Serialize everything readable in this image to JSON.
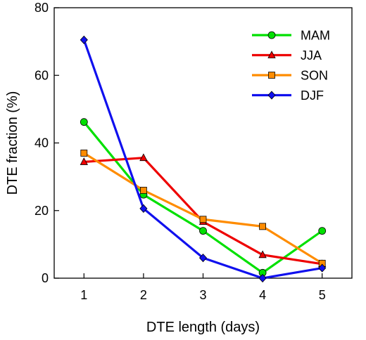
{
  "chart_data": {
    "type": "line",
    "title": "",
    "xlabel": "DTE length (days)",
    "ylabel": "DTE fraction (%)",
    "x": [
      1,
      2,
      3,
      4,
      5
    ],
    "x_ticks": [
      "1",
      "2",
      "3",
      "4",
      "5"
    ],
    "y_ticks": [
      "0",
      "20",
      "40",
      "60",
      "80"
    ],
    "xlim": [
      0.5,
      5.5
    ],
    "ylim": [
      0,
      80
    ],
    "grid": false,
    "legend_position": "top-right",
    "series": [
      {
        "name": "MAM",
        "color": "#00e000",
        "marker": "circle",
        "values": [
          46.2,
          24.7,
          14.0,
          1.6,
          14.0
        ]
      },
      {
        "name": "JJA",
        "color": "#ee0000",
        "marker": "triangle",
        "values": [
          34.4,
          35.6,
          16.7,
          6.9,
          4.2
        ]
      },
      {
        "name": "SON",
        "color": "#ff8c00",
        "marker": "square",
        "values": [
          37.0,
          26.0,
          17.4,
          15.3,
          4.4
        ]
      },
      {
        "name": "DJF",
        "color": "#1010ee",
        "marker": "diamond",
        "values": [
          70.5,
          20.6,
          6.0,
          0.0,
          3.0
        ]
      }
    ]
  }
}
